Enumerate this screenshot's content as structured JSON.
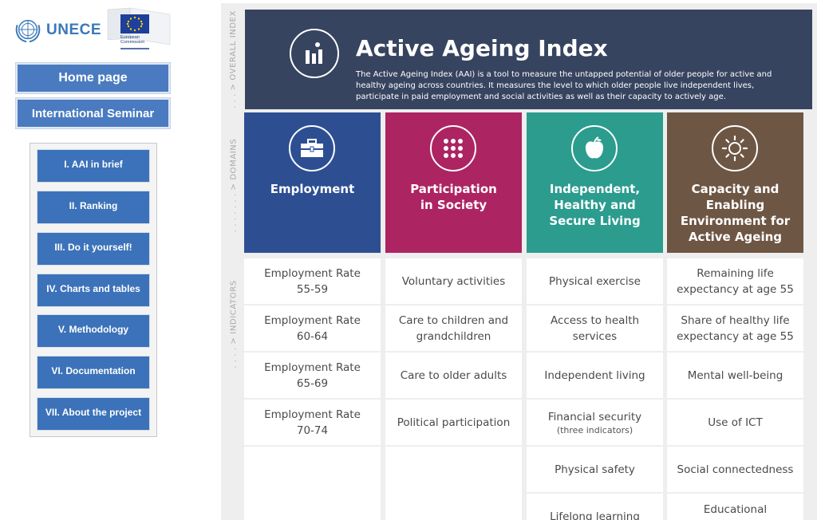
{
  "logos": {
    "unece": "UNECE",
    "european_commission": "European Commission"
  },
  "nav": {
    "home": "Home page",
    "seminar": "International Seminar"
  },
  "submenu": [
    "I. AAI in brief",
    "II. Ranking",
    "III. Do it yourself!",
    "IV. Charts and tables",
    "V. Methodology",
    "VI. Documentation",
    "VII. About the project"
  ],
  "infographic": {
    "side_labels": {
      "overall": ". . . > OVERALL INDEX",
      "domains": ". . . . . . . > DOMAINS",
      "indicators": ". . . . > INDICATORS"
    },
    "title": "Active Ageing Index",
    "description": "The Active Ageing Index (AAI) is a tool to measure the untapped potential of older people for active and healthy ageing across countries. It measures the level to which older people live independent lives, participate in paid employment and social activities as well as their capacity to actively age.",
    "domains": [
      {
        "title": "Employment",
        "icon": "briefcase-icon",
        "color": "#2d4f92",
        "indicators": [
          {
            "text": "Employment Rate\n55-59"
          },
          {
            "text": "Employment Rate\n60-64"
          },
          {
            "text": "Employment Rate\n65-69"
          },
          {
            "text": "Employment Rate\n70-74"
          }
        ]
      },
      {
        "title": "Participation\nin Society",
        "icon": "dots-grid-icon",
        "color": "#ad2463",
        "indicators": [
          {
            "text": "Voluntary activities"
          },
          {
            "text": "Care to children and\ngrandchildren"
          },
          {
            "text": "Care to older adults"
          },
          {
            "text": "Political participation"
          }
        ]
      },
      {
        "title": "Independent,\nHealthy and\nSecure Living",
        "icon": "apple-icon",
        "color": "#2b9c8e",
        "indicators": [
          {
            "text": "Physical exercise"
          },
          {
            "text": "Access to health\nservices"
          },
          {
            "text": "Independent living"
          },
          {
            "text": "Financial security",
            "sub": "(three indicators)"
          },
          {
            "text": "Physical safety"
          },
          {
            "text": "Lifelong learning"
          }
        ]
      },
      {
        "title": "Capacity and\nEnabling\nEnvironment for\nActive Ageing",
        "icon": "sun-icon",
        "color": "#6e5644",
        "indicators": [
          {
            "text": "Remaining life\nexpectancy at age 55"
          },
          {
            "text": "Share of healthy life\nexpectancy at age 55"
          },
          {
            "text": "Mental well-being"
          },
          {
            "text": "Use of ICT"
          },
          {
            "text": "Social connectedness"
          },
          {
            "text": "Educational"
          }
        ]
      }
    ]
  }
}
